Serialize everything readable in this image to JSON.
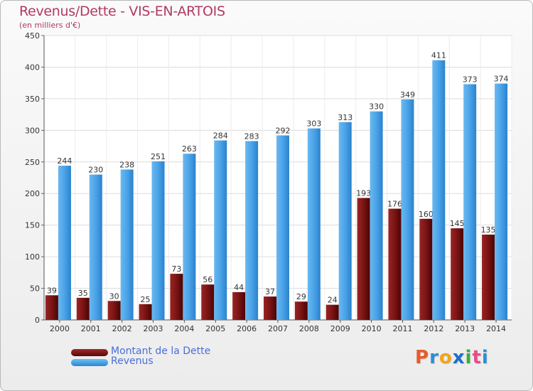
{
  "header": {
    "title": "Revenus/Dette - VIS-EN-ARTOIS",
    "subtitle": "(en milliers d'€)"
  },
  "legend": [
    {
      "label": "Montant de la Dette",
      "color": "#7a1818"
    },
    {
      "label": "Revenus",
      "color": "#4aa3e8"
    }
  ],
  "logo": {
    "letters": [
      "P",
      "r",
      "o",
      "x",
      "i",
      "t",
      "i"
    ],
    "colors": [
      "#e85a2a",
      "#2a8fd6",
      "#f2a516",
      "#1c6fc6",
      "#3cae3c",
      "#e84b8a",
      "#2a8fd6"
    ]
  },
  "chart_data": {
    "type": "bar",
    "categories": [
      "2000",
      "2001",
      "2002",
      "2003",
      "2004",
      "2005",
      "2006",
      "2007",
      "2008",
      "2009",
      "2010",
      "2011",
      "2012",
      "2013",
      "2014"
    ],
    "series": [
      {
        "name": "Montant de la Dette",
        "color": "#7a1818",
        "values": [
          39,
          35,
          30,
          25,
          73,
          56,
          44,
          37,
          29,
          24,
          193,
          176,
          160,
          145,
          135
        ]
      },
      {
        "name": "Revenus",
        "color": "#4aa3e8",
        "values": [
          244,
          230,
          238,
          251,
          263,
          284,
          283,
          292,
          303,
          313,
          330,
          349,
          411,
          373,
          374
        ]
      }
    ],
    "yticks": [
      0,
      50,
      100,
      150,
      200,
      250,
      300,
      350,
      400,
      450
    ],
    "ylim": [
      0,
      450
    ],
    "grid": true
  }
}
